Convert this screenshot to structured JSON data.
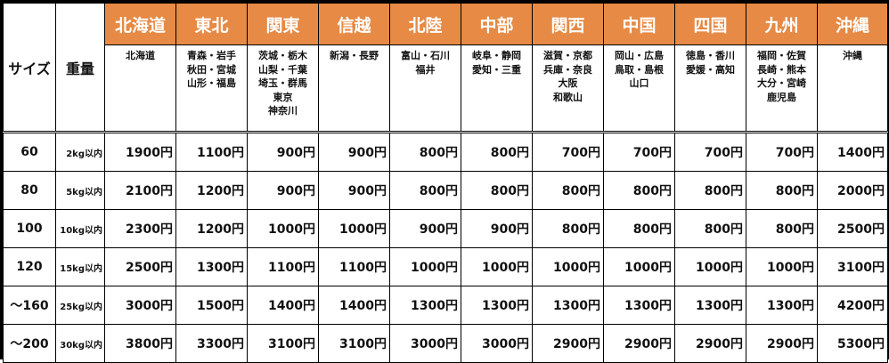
{
  "headers": {
    "size": "サイズ",
    "weight": "重量"
  },
  "colors": {
    "header_bg": "#e68a45",
    "header_text": "#ffffff"
  },
  "regions": [
    {
      "name": "北海道",
      "prefectures": [
        "北海道"
      ]
    },
    {
      "name": "東北",
      "prefectures": [
        "青森・岩手",
        "秋田・宮城",
        "山形・福島"
      ]
    },
    {
      "name": "関東",
      "prefectures": [
        "茨城・栃木",
        "山梨・千葉",
        "埼玉・群馬",
        "東京",
        "神奈川"
      ]
    },
    {
      "name": "信越",
      "prefectures": [
        "新潟・長野"
      ]
    },
    {
      "name": "北陸",
      "prefectures": [
        "富山・石川",
        "福井"
      ]
    },
    {
      "name": "中部",
      "prefectures": [
        "岐阜・静岡",
        "愛知・三重"
      ]
    },
    {
      "name": "関西",
      "prefectures": [
        "滋賀・京都",
        "兵庫・奈良",
        "大阪",
        "和歌山"
      ]
    },
    {
      "name": "中国",
      "prefectures": [
        "岡山・広島",
        "鳥取・島根",
        "山口"
      ]
    },
    {
      "name": "四国",
      "prefectures": [
        "徳島・香川",
        "愛媛・高知"
      ]
    },
    {
      "name": "九州",
      "prefectures": [
        "福岡・佐賀",
        "長崎・熊本",
        "大分・宮崎",
        "鹿児島"
      ]
    },
    {
      "name": "沖縄",
      "prefectures": [
        "沖縄"
      ]
    }
  ],
  "rows": [
    {
      "size": "60",
      "weight": "2kg以内",
      "prices": [
        "1900円",
        "1100円",
        "900円",
        "900円",
        "800円",
        "800円",
        "700円",
        "700円",
        "700円",
        "700円",
        "1400円"
      ]
    },
    {
      "size": "80",
      "weight": "5kg以内",
      "prices": [
        "2100円",
        "1200円",
        "900円",
        "900円",
        "800円",
        "800円",
        "800円",
        "800円",
        "800円",
        "800円",
        "2000円"
      ]
    },
    {
      "size": "100",
      "weight": "10kg以内",
      "prices": [
        "2300円",
        "1200円",
        "1000円",
        "1000円",
        "900円",
        "900円",
        "800円",
        "800円",
        "800円",
        "800円",
        "2500円"
      ]
    },
    {
      "size": "120",
      "weight": "15kg以内",
      "prices": [
        "2500円",
        "1300円",
        "1100円",
        "1100円",
        "1000円",
        "1000円",
        "1000円",
        "1000円",
        "1000円",
        "1000円",
        "3100円"
      ]
    },
    {
      "size": "～160",
      "weight": "25kg以内",
      "prices": [
        "3000円",
        "1500円",
        "1400円",
        "1400円",
        "1300円",
        "1300円",
        "1300円",
        "1300円",
        "1300円",
        "1300円",
        "4200円"
      ]
    },
    {
      "size": "～200",
      "weight": "30kg以内",
      "prices": [
        "3800円",
        "3300円",
        "3100円",
        "3100円",
        "3000円",
        "3000円",
        "2900円",
        "2900円",
        "2900円",
        "2900円",
        "5300円"
      ]
    }
  ]
}
